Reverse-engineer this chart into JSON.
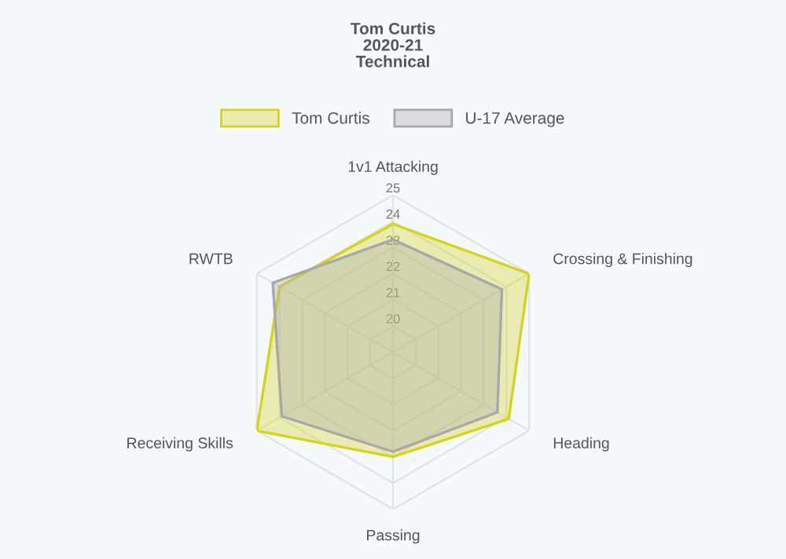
{
  "chart_data": {
    "type": "radar",
    "title": "Tom Curtis\n2020-21\nTechnical",
    "categories": [
      "1v1 Attacking",
      "Crossing & Finishing",
      "Heading",
      "Passing",
      "Receiving Skills",
      "RWTB"
    ],
    "series": [
      {
        "name": "Tom Curtis",
        "color": "#d4d420",
        "values": [
          23.9,
          25,
          24.1,
          23,
          25,
          24
        ]
      },
      {
        "name": "U-17 Average",
        "color": "#a8a8a8",
        "values": [
          23.3,
          23.8,
          23.6,
          22.8,
          23.9,
          24.3
        ]
      }
    ],
    "ylim": [
      19,
      25
    ],
    "yticks": [
      20,
      21,
      22,
      23,
      24,
      25
    ],
    "grid": true,
    "legend": "top"
  }
}
